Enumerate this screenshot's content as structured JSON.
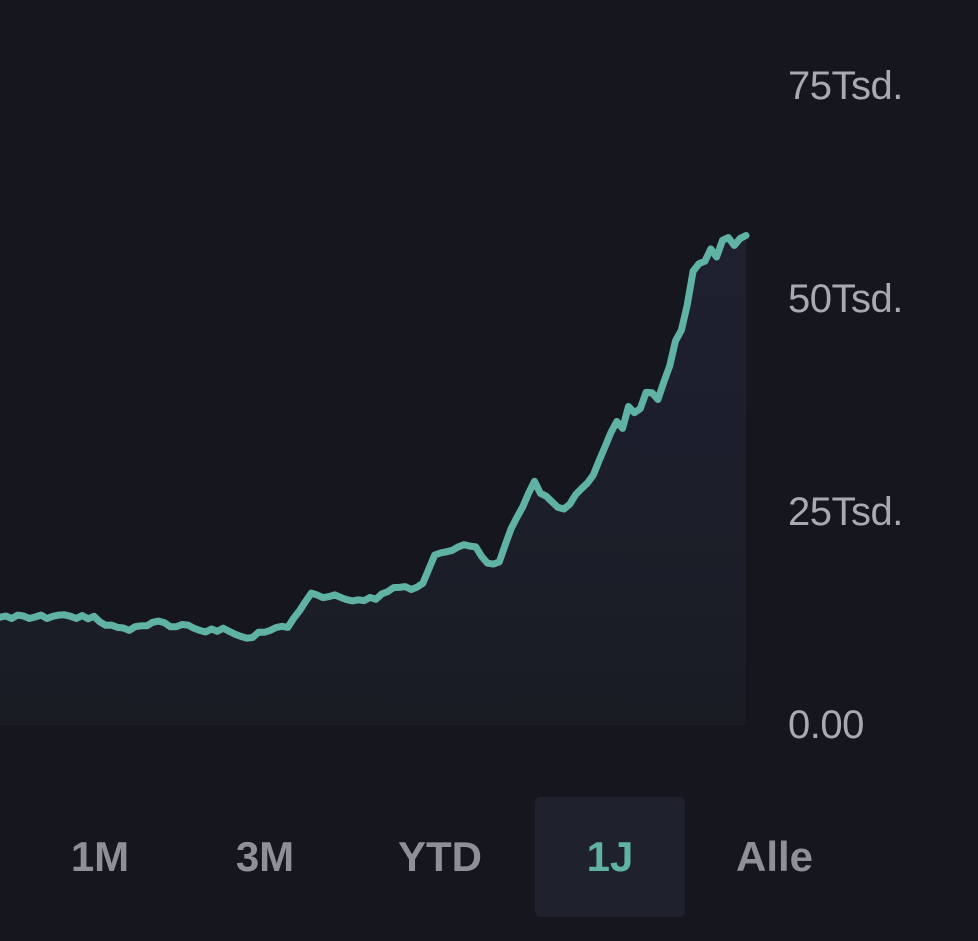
{
  "colors": {
    "background": "#16171e",
    "line": "#5fb2a4",
    "area_fill": "#1c1e27",
    "axis_text": "#a9aaaf",
    "tab_inactive": "#8f9096",
    "tab_active_text": "#5fb2a4",
    "tab_active_bg": "#1f212d"
  },
  "chart_data": {
    "type": "area",
    "title": "",
    "xlabel": "",
    "ylabel": "",
    "ylim": [
      0,
      75000
    ],
    "y_ticks": [
      {
        "value": 75000,
        "label": "75Tsd."
      },
      {
        "value": 50000,
        "label": "50Tsd."
      },
      {
        "value": 25000,
        "label": "25Tsd."
      },
      {
        "value": 0,
        "label": "0.00"
      }
    ],
    "y_axis_position": "right",
    "grid": false,
    "series": [
      {
        "values": [
          12650,
          12790,
          12500,
          12900,
          12790,
          12500,
          12680,
          12900,
          12500,
          12760,
          12900,
          12940,
          12760,
          12500,
          12850,
          12470,
          12760,
          12100,
          11700,
          11730,
          11460,
          11380,
          11100,
          11540,
          11640,
          11640,
          12050,
          12200,
          12000,
          11530,
          11530,
          11800,
          11730,
          11360,
          11100,
          10920,
          11270,
          11000,
          11360,
          11000,
          10660,
          10400,
          10190,
          10270,
          10880,
          10880,
          11100,
          11440,
          11580,
          11460,
          12530,
          13420,
          14470,
          15480,
          15260,
          14940,
          15070,
          15270,
          14980,
          14720,
          14560,
          14690,
          14600,
          14980,
          14750,
          15390,
          15660,
          16130,
          16150,
          16240,
          15900,
          16190,
          16640,
          18300,
          19950,
          20200,
          20330,
          20500,
          20900,
          21160,
          21000,
          20900,
          19780,
          18990,
          18890,
          19140,
          21140,
          23020,
          24370,
          25620,
          27240,
          28600,
          27200,
          26850,
          26170,
          25540,
          25350,
          25920,
          27040,
          27730,
          28390,
          29330,
          31020,
          32640,
          34320,
          35620,
          34810,
          37380,
          36650,
          37140,
          39040,
          39000,
          38200,
          40250,
          42100,
          45080,
          46340,
          49340,
          53260,
          54140,
          54440,
          55880,
          54930,
          56890,
          57210,
          56280,
          57100,
          57450
        ]
      }
    ]
  },
  "range_tabs": {
    "items": [
      {
        "label": "1M"
      },
      {
        "label": "3M"
      },
      {
        "label": "YTD"
      },
      {
        "label": "1J"
      },
      {
        "label": "Alle"
      }
    ],
    "active": "1J"
  }
}
